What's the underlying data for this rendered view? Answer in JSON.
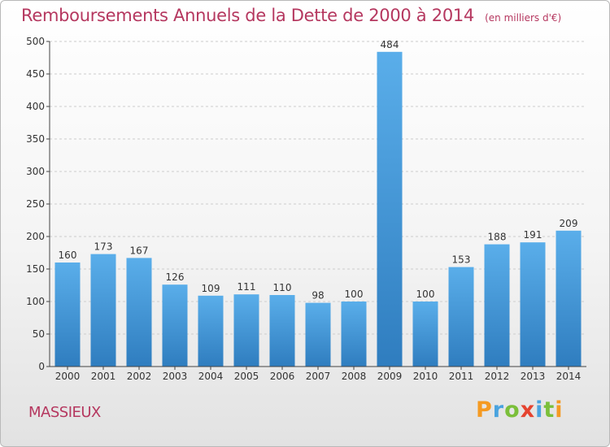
{
  "header": {
    "title": "Remboursements Annuels de la Dette de 2000 à 2014",
    "unit": "(en milliers d'€)"
  },
  "footer": {
    "town": "MASSIEUX",
    "brand_letters": [
      {
        "char": "P",
        "color": "#f59a22"
      },
      {
        "char": "r",
        "color": "#4aa3df"
      },
      {
        "char": "o",
        "color": "#7bbf3a"
      },
      {
        "char": "x",
        "color": "#e5432f"
      },
      {
        "char": "i",
        "color": "#4aa3df"
      },
      {
        "char": "t",
        "color": "#7bbf3a"
      },
      {
        "char": "i",
        "color": "#f59a22"
      }
    ]
  },
  "chart_data": {
    "type": "bar",
    "title": "Remboursements Annuels de la Dette de 2000 à 2014",
    "subtitle": "(en milliers d'€)",
    "categories": [
      "2000",
      "2001",
      "2002",
      "2003",
      "2004",
      "2005",
      "2006",
      "2007",
      "2008",
      "2009",
      "2010",
      "2011",
      "2012",
      "2013",
      "2014"
    ],
    "values": [
      160,
      173,
      167,
      126,
      109,
      111,
      110,
      98,
      100,
      484,
      100,
      153,
      188,
      191,
      209
    ],
    "ylim": [
      0,
      500
    ],
    "yticks": [
      0,
      50,
      100,
      150,
      200,
      250,
      300,
      350,
      400,
      450,
      500
    ],
    "grid": true,
    "colors": {
      "bar_light": "#5aaeea",
      "bar_dark": "#2f7dbf",
      "grid": "#cccccc",
      "axis": "#444444"
    }
  }
}
